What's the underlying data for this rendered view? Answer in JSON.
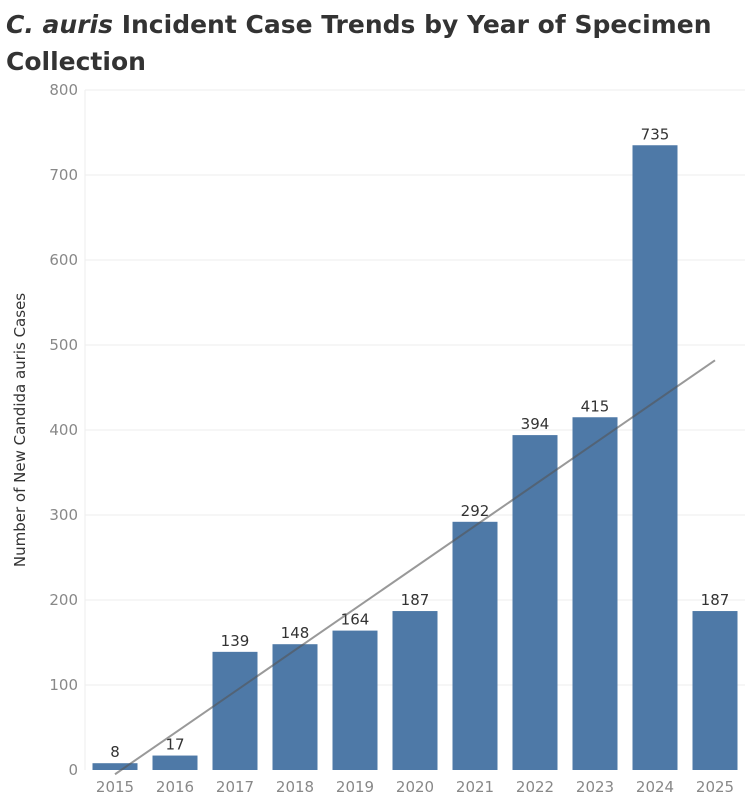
{
  "header": {
    "title_italic": "C. auris",
    "title_rest": " Incident Case Trends by Year of Specimen Collection"
  },
  "chart_data": {
    "type": "bar",
    "title": "C. auris Incident Case Trends by Year of Specimen Collection",
    "xlabel": "",
    "ylabel": "Number of New Candida auris Cases",
    "categories": [
      "2015",
      "2016",
      "2017",
      "2018",
      "2019",
      "2020",
      "2021",
      "2022",
      "2023",
      "2024",
      "2025"
    ],
    "values": [
      8,
      17,
      139,
      148,
      164,
      187,
      292,
      394,
      415,
      735,
      187
    ],
    "ylim": [
      0,
      800
    ],
    "yticks": [
      0,
      100,
      200,
      300,
      400,
      500,
      600,
      700,
      800
    ],
    "grid": true,
    "trend_line": {
      "type": "linear",
      "start": [
        2015,
        -5
      ],
      "end": [
        2025,
        482
      ]
    },
    "colors": {
      "bar": "#4e79a7",
      "trend": "#555555",
      "grid": "#eeeeee"
    }
  }
}
